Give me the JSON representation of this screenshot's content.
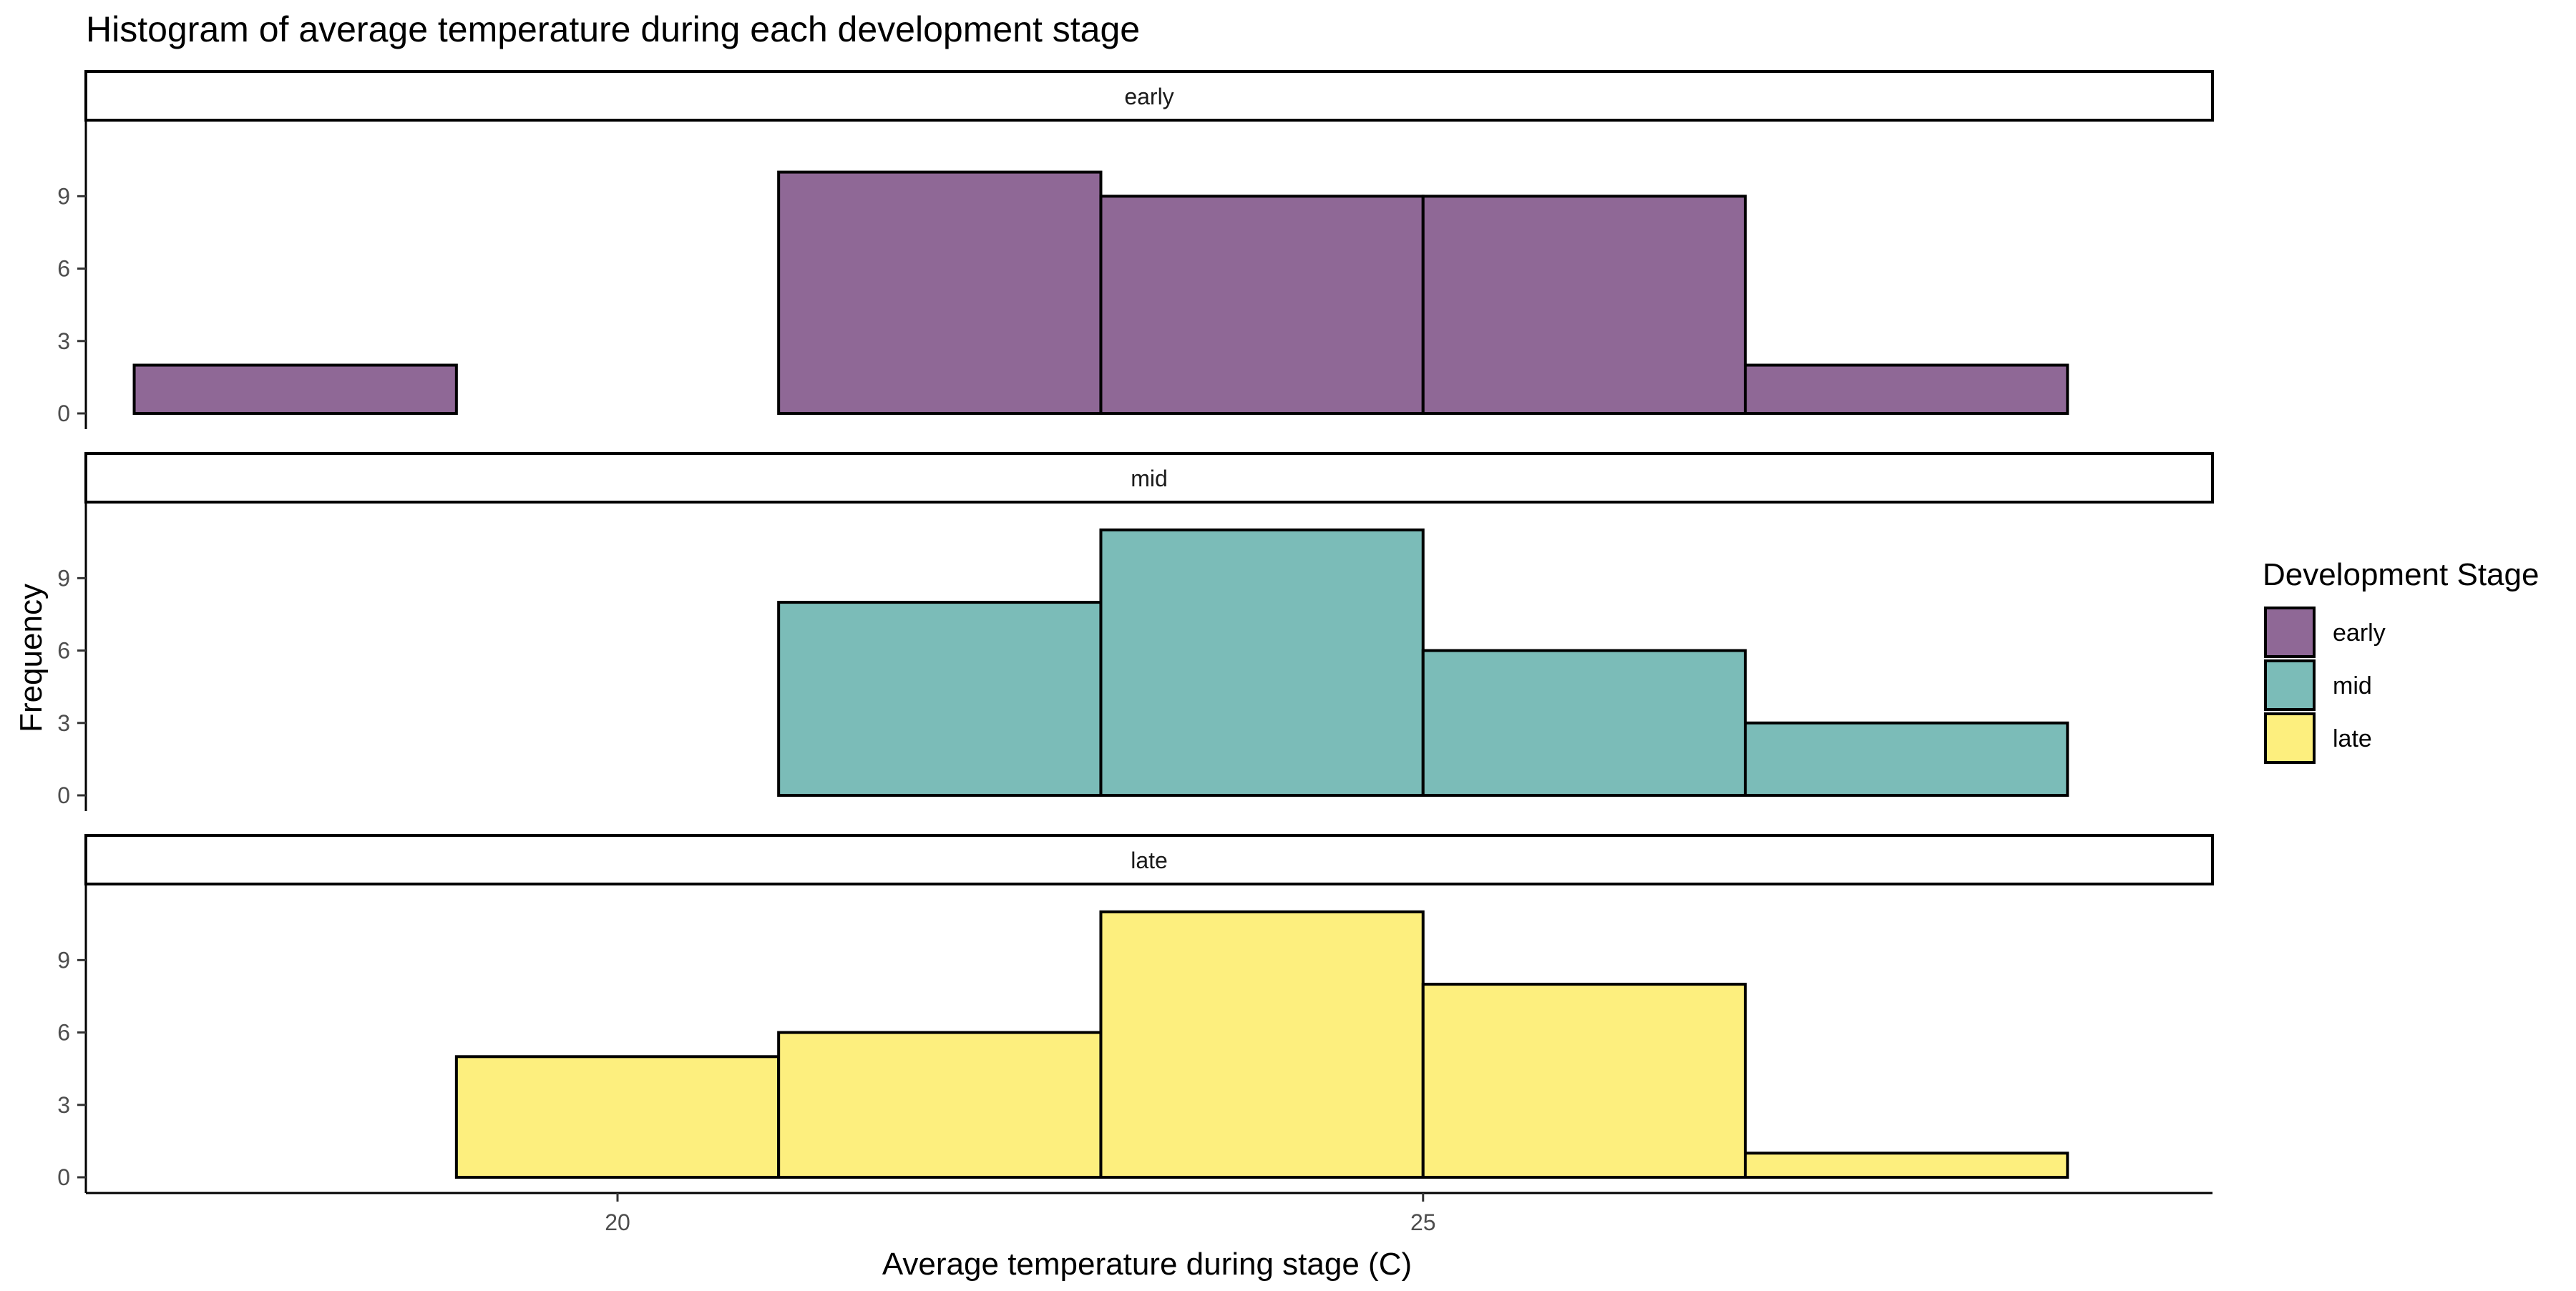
{
  "chart_data": {
    "type": "bar",
    "title": "Histogram of average temperature during each development stage",
    "xlabel": "Average temperature during stage (C)",
    "ylabel": "Frequency",
    "xlim": [
      16.7,
      29.9
    ],
    "ylim": [
      0,
      11.5
    ],
    "x_ticks": [
      20,
      25
    ],
    "y_ticks": [
      0,
      3,
      6,
      9
    ],
    "bin_edges": [
      17,
      19,
      21,
      23,
      25,
      27,
      29
    ],
    "legend": {
      "title": "Development Stage",
      "position": "right",
      "items": [
        {
          "label": "early",
          "color": "#8F6896"
        },
        {
          "label": "mid",
          "color": "#7BBCB8"
        },
        {
          "label": "late",
          "color": "#FDEF7E"
        }
      ]
    },
    "facets": [
      {
        "label": "early",
        "color": "#8F6896",
        "values": [
          2,
          0,
          10,
          9,
          9,
          2
        ]
      },
      {
        "label": "mid",
        "color": "#7BBCB8",
        "values": [
          0,
          0,
          8,
          11,
          6,
          3
        ]
      },
      {
        "label": "late",
        "color": "#FDEF7E",
        "values": [
          0,
          5,
          6,
          11,
          8,
          1
        ]
      }
    ],
    "grid": false
  }
}
